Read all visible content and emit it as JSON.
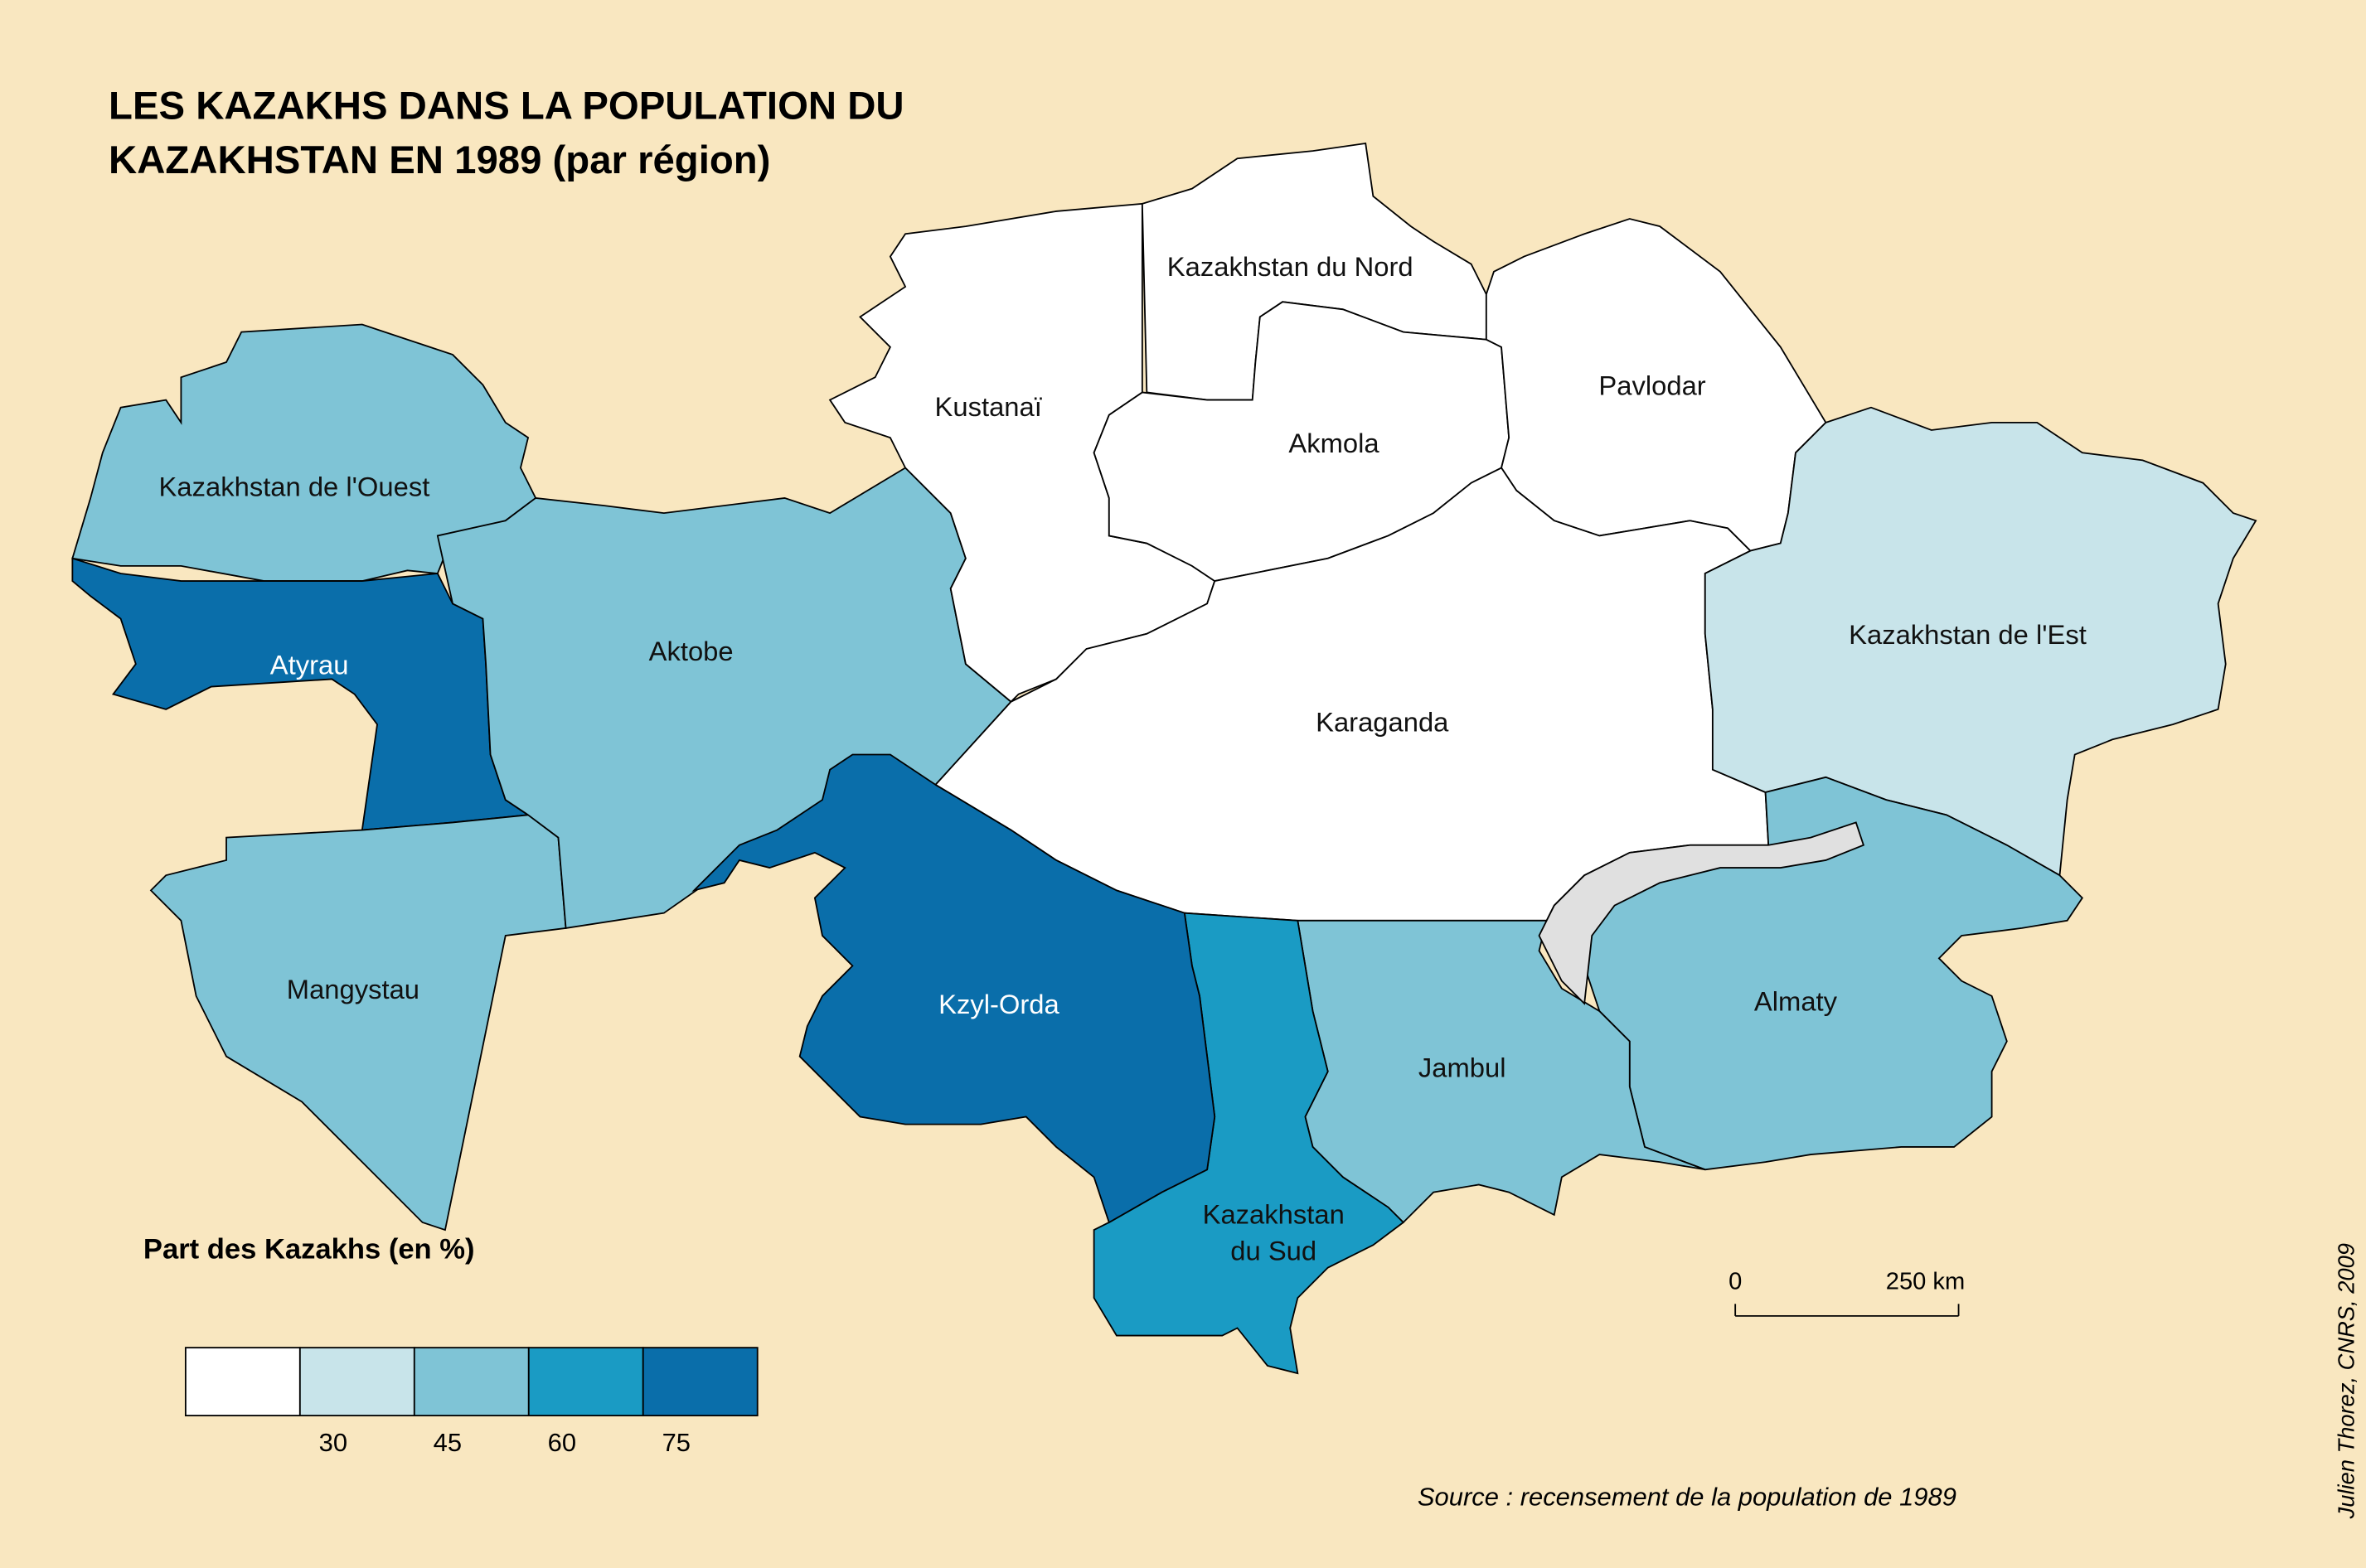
{
  "title": [
    "LES KAZAKHS DANS LA POPULATION DU",
    "KAZAKHSTAN EN 1989 (par région)"
  ],
  "regions": [
    {
      "name": "Kazakhstan de l'Ouest",
      "color": "#7fc4d6"
    },
    {
      "name": "Atyrau",
      "color": "#0a6eaa"
    },
    {
      "name": "Mangystau",
      "color": "#7fc4d6"
    },
    {
      "name": "Aktobe",
      "color": "#7fc4d6"
    },
    {
      "name": "Kustanaï",
      "color": "#ffffff"
    },
    {
      "name": "Kazakhstan du Nord",
      "color": "#ffffff"
    },
    {
      "name": "Akmola",
      "color": "#ffffff"
    },
    {
      "name": "Pavlodar",
      "color": "#ffffff"
    },
    {
      "name": "Karaganda",
      "color": "#ffffff"
    },
    {
      "name": "Kazakhstan de l'Est",
      "color": "#c8e4ea"
    },
    {
      "name": "Almaty",
      "color": "#7fc4d6"
    },
    {
      "name": "Jambul",
      "color": "#7fc4d6"
    },
    {
      "name": "Kazakhstan du Sud",
      "color": "#1a9bc4"
    },
    {
      "name": "Kzyl-Orda",
      "color": "#0a6eaa"
    }
  ],
  "legend": {
    "title": "Part des Kazakhs (en %)",
    "colors": [
      "#ffffff",
      "#c8e4ea",
      "#7fc4d6",
      "#1a9bc4",
      "#0a6eaa"
    ],
    "ticks": [
      30,
      45,
      60,
      75
    ]
  },
  "scale": {
    "start": "0",
    "end": "250 km"
  },
  "source": "Source : recensement de la population de 1989",
  "credit": "Julien Thorez, CNRS, 2009"
}
